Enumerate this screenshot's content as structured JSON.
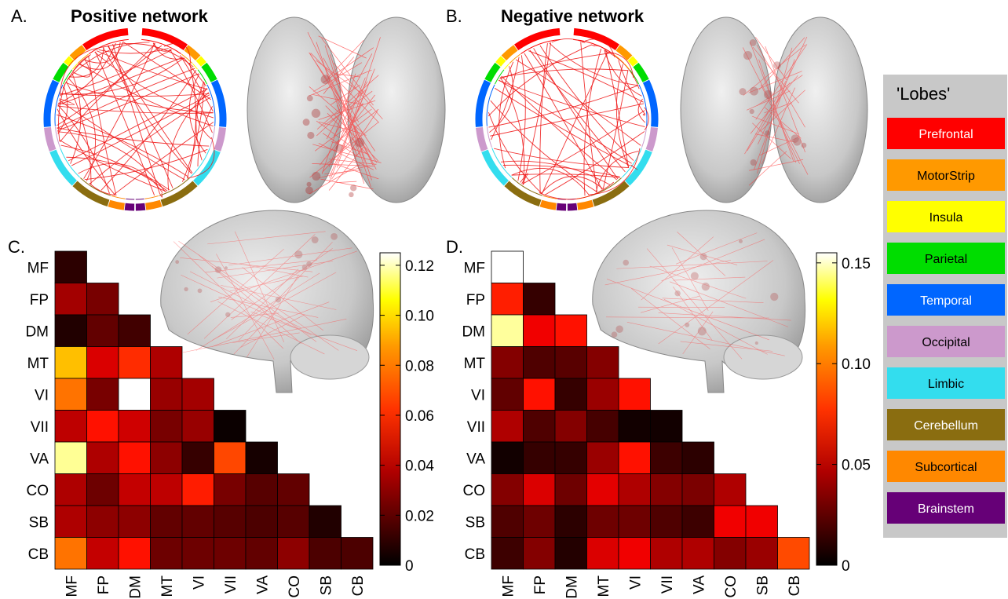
{
  "panels": {
    "A": {
      "letter": "A.",
      "title": "Positive network"
    },
    "B": {
      "letter": "B.",
      "title": "Negative network"
    },
    "C": {
      "letter": "C."
    },
    "D": {
      "letter": "D."
    }
  },
  "legend": {
    "title": "'Lobes'",
    "items": [
      {
        "label": "Prefrontal",
        "color": "#ff0000",
        "text_color": "#ffffff"
      },
      {
        "label": "MotorStrip",
        "color": "#ff9900",
        "text_color": "#000000"
      },
      {
        "label": "Insula",
        "color": "#ffff00",
        "text_color": "#000000"
      },
      {
        "label": "Parietal",
        "color": "#00dd00",
        "text_color": "#000000"
      },
      {
        "label": "Temporal",
        "color": "#0066ff",
        "text_color": "#ffffff"
      },
      {
        "label": "Occipital",
        "color": "#cc99cc",
        "text_color": "#000000"
      },
      {
        "label": "Limbic",
        "color": "#33ddee",
        "text_color": "#000000"
      },
      {
        "label": "Cerebellum",
        "color": "#8a6d10",
        "text_color": "#ffffff"
      },
      {
        "label": "Subcortical",
        "color": "#ff8800",
        "text_color": "#000000"
      },
      {
        "label": "Brainstem",
        "color": "#660077",
        "text_color": "#ffffff"
      }
    ]
  },
  "chart_data": [
    {
      "type": "heatmap",
      "panel": "C",
      "networks": [
        "MF",
        "FP",
        "DM",
        "MT",
        "VI",
        "VII",
        "VA",
        "CO",
        "SB",
        "CB"
      ],
      "values": [
        [
          0.008
        ],
        [
          0.03,
          0.022
        ],
        [
          0.006,
          0.018,
          0.012
        ],
        [
          0.082,
          0.04,
          0.055,
          0.032
        ],
        [
          0.068,
          0.022,
          0.125,
          0.028,
          0.03
        ],
        [
          0.035,
          0.05,
          0.038,
          0.022,
          0.028,
          0.002
        ],
        [
          0.112,
          0.032,
          0.05,
          0.026,
          0.01,
          0.06,
          0.004
        ],
        [
          0.032,
          0.02,
          0.036,
          0.035,
          0.052,
          0.022,
          0.016,
          0.018
        ],
        [
          0.032,
          0.026,
          0.026,
          0.018,
          0.018,
          0.016,
          0.014,
          0.016,
          0.006
        ],
        [
          0.068,
          0.036,
          0.05,
          0.02,
          0.02,
          0.02,
          0.018,
          0.026,
          0.014,
          0.014
        ]
      ],
      "colorbar": {
        "min": 0,
        "max": 0.125,
        "ticks": [
          0,
          0.02,
          0.04,
          0.06,
          0.08,
          0.1,
          0.12
        ],
        "tick_labels": [
          "0",
          "0.02",
          "0.04",
          "0.06",
          "0.08",
          "0.10",
          "0.12"
        ]
      },
      "colormap": "hot"
    },
    {
      "type": "heatmap",
      "panel": "D",
      "networks": [
        "MF",
        "FP",
        "DM",
        "MT",
        "VI",
        "VII",
        "VA",
        "CO",
        "SB",
        "CB"
      ],
      "values": [
        [
          0.155
        ],
        [
          0.065,
          0.012
        ],
        [
          0.14,
          0.055,
          0.062
        ],
        [
          0.03,
          0.018,
          0.02,
          0.03
        ],
        [
          0.022,
          0.062,
          0.012,
          0.035,
          0.062
        ],
        [
          0.04,
          0.018,
          0.03,
          0.016,
          0.004,
          0.004
        ],
        [
          0.004,
          0.012,
          0.012,
          0.035,
          0.062,
          0.014,
          0.01
        ],
        [
          0.03,
          0.05,
          0.025,
          0.052,
          0.04,
          0.03,
          0.028,
          0.04
        ],
        [
          0.018,
          0.025,
          0.01,
          0.025,
          0.025,
          0.018,
          0.014,
          0.055,
          0.055
        ],
        [
          0.014,
          0.03,
          0.008,
          0.05,
          0.055,
          0.04,
          0.04,
          0.03,
          0.035,
          0.075
        ]
      ],
      "colorbar": {
        "min": 0,
        "max": 0.155,
        "ticks": [
          0,
          0.05,
          0.1,
          0.15
        ],
        "tick_labels": [
          "0",
          "0.05",
          "0.10",
          "0.15"
        ]
      },
      "colormap": "hot"
    }
  ]
}
